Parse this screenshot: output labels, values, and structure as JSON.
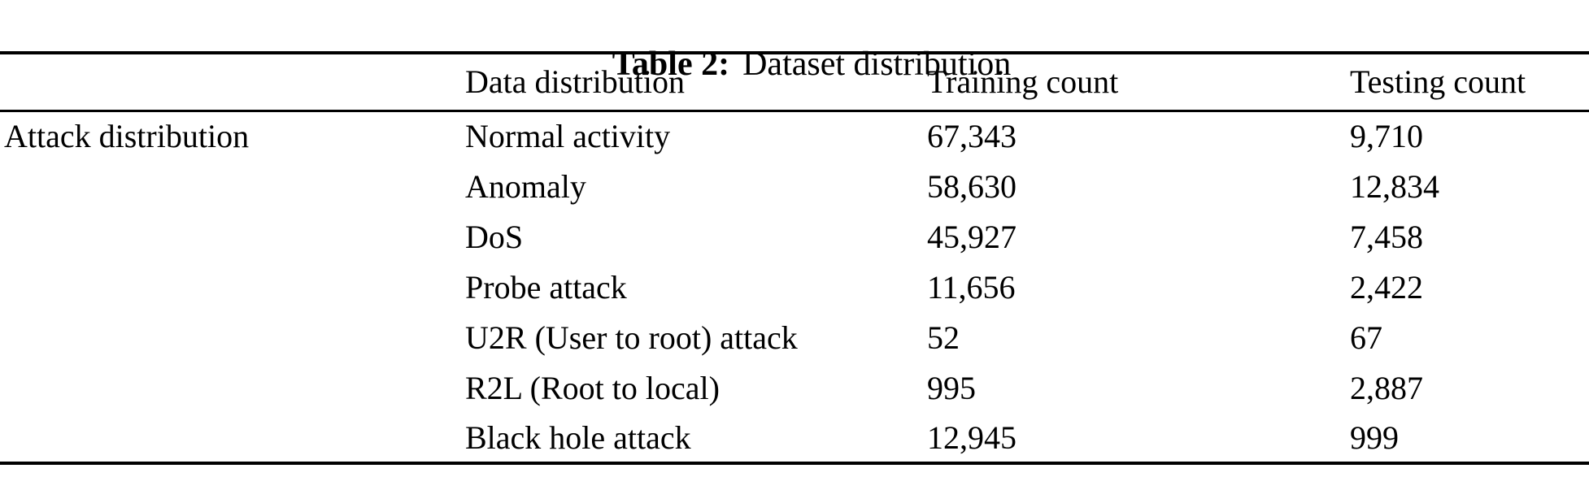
{
  "caption": {
    "label": "Table 2:",
    "text": "Dataset distribution"
  },
  "table": {
    "columns": [
      "",
      "Data distribution",
      "Training count",
      "Testing count"
    ],
    "rows": [
      {
        "category": "Attack distribution",
        "name": "Normal activity",
        "training": "67,343",
        "testing": "9,710"
      },
      {
        "category": "",
        "name": "Anomaly",
        "training": "58,630",
        "testing": "12,834"
      },
      {
        "category": "",
        "name": "DoS",
        "training": "45,927",
        "testing": "7,458"
      },
      {
        "category": "",
        "name": "Probe attack",
        "training": "11,656",
        "testing": "2,422"
      },
      {
        "category": "",
        "name": "U2R (User to root) attack",
        "training": "52",
        "testing": "67"
      },
      {
        "category": "",
        "name": "R2L (Root to local)",
        "training": "995",
        "testing": "2,887"
      },
      {
        "category": "",
        "name": "Black hole attack",
        "training": "12,945",
        "testing": "999"
      }
    ]
  }
}
